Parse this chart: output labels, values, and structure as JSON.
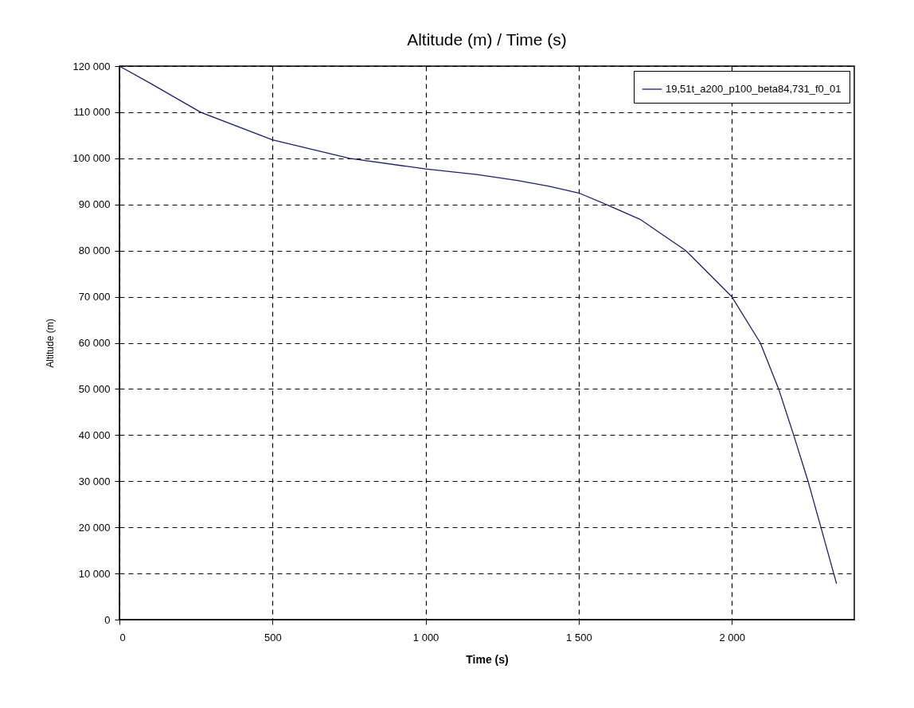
{
  "chart_data": {
    "type": "line",
    "title": "Altitude (m) / Time (s)",
    "xlabel": "Time (s)",
    "ylabel": "Altitude (m)",
    "x": [
      0,
      100,
      265,
      500,
      752,
      1000,
      1167,
      1300,
      1400,
      1500,
      1590,
      1700,
      1850,
      2000,
      2093,
      2153,
      2202,
      2249,
      2291,
      2342
    ],
    "series": [
      {
        "name": "19,51t_a200_p100_beta84,731_f0_01",
        "color": "#1f1f66",
        "values": [
          120000,
          116300,
          110000,
          104000,
          100000,
          97700,
          96500,
          95200,
          94000,
          92500,
          90000,
          86800,
          80000,
          70000,
          60000,
          50000,
          40000,
          30000,
          20000,
          7800
        ]
      }
    ],
    "xlim": [
      0,
      2400
    ],
    "ylim": [
      0,
      120000
    ],
    "xticks": [
      0,
      500,
      {
        "value": 1000,
        "label": "1 000"
      },
      {
        "value": 1500,
        "label": "1 500"
      },
      {
        "value": 2000,
        "label": "2 000"
      }
    ],
    "yticks": [
      0,
      {
        "value": 10000,
        "label": "10 000"
      },
      {
        "value": 20000,
        "label": "20 000"
      },
      {
        "value": 30000,
        "label": "30 000"
      },
      {
        "value": 40000,
        "label": "40 000"
      },
      {
        "value": 50000,
        "label": "50 000"
      },
      {
        "value": 60000,
        "label": "60 000"
      },
      {
        "value": 70000,
        "label": "70 000"
      },
      {
        "value": 80000,
        "label": "80 000"
      },
      {
        "value": 90000,
        "label": "90 000"
      },
      {
        "value": 100000,
        "label": "100 000"
      },
      {
        "value": 110000,
        "label": "110 000"
      },
      {
        "value": 120000,
        "label": "120 000"
      }
    ],
    "grid": true,
    "legend": "top right",
    "line_style": "solid",
    "marker": "none"
  }
}
